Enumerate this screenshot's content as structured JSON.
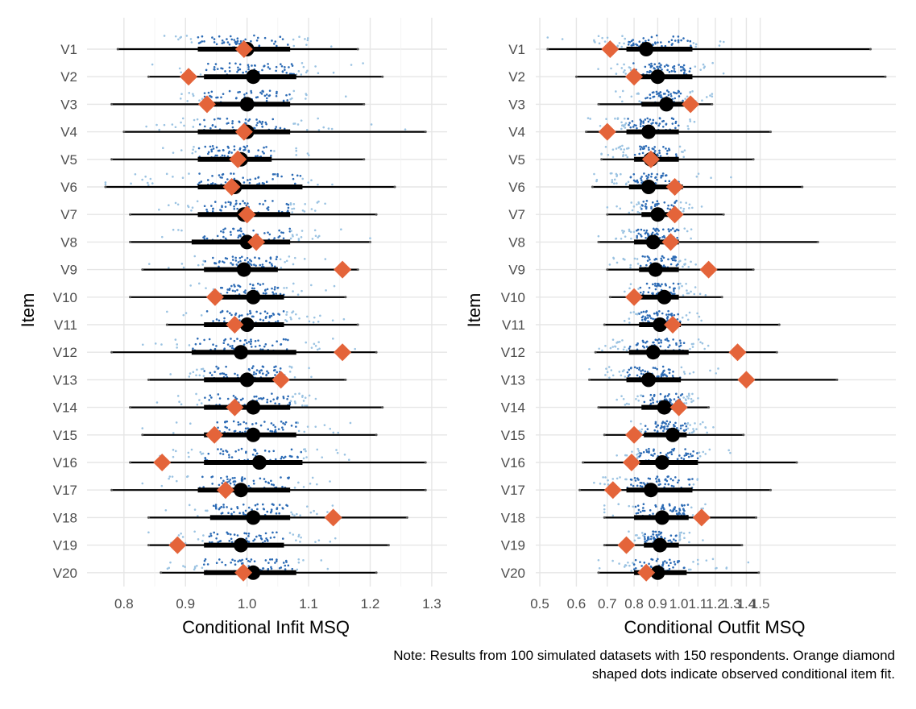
{
  "chart_data": [
    {
      "type": "interval-dotplot",
      "xlabel": "Conditional Infit MSQ",
      "ylabel": "Item",
      "xlim": [
        0.74,
        1.325
      ],
      "xticks": [
        0.8,
        0.9,
        1.0,
        1.1,
        1.2,
        1.3
      ],
      "xtick_labels": [
        "0.8",
        "0.9",
        "1.0",
        "1.1",
        "1.2",
        "1.3"
      ],
      "categories": [
        "V1",
        "V2",
        "V3",
        "V4",
        "V5",
        "V6",
        "V7",
        "V8",
        "V9",
        "V10",
        "V11",
        "V12",
        "V13",
        "V14",
        "V15",
        "V16",
        "V17",
        "V18",
        "V19",
        "V20"
      ],
      "median": [
        1.0,
        1.01,
        1.0,
        1.0,
        0.99,
        0.98,
        0.995,
        1.0,
        0.995,
        1.01,
        1.0,
        0.99,
        1.0,
        1.01,
        1.01,
        1.02,
        0.99,
        1.01,
        0.99,
        1.01
      ],
      "interval_66": [
        [
          0.92,
          1.07
        ],
        [
          0.93,
          1.08
        ],
        [
          0.93,
          1.07
        ],
        [
          0.92,
          1.07
        ],
        [
          0.92,
          1.04
        ],
        [
          0.92,
          1.09
        ],
        [
          0.92,
          1.07
        ],
        [
          0.91,
          1.07
        ],
        [
          0.93,
          1.05
        ],
        [
          0.95,
          1.06
        ],
        [
          0.93,
          1.06
        ],
        [
          0.91,
          1.08
        ],
        [
          0.93,
          1.06
        ],
        [
          0.93,
          1.07
        ],
        [
          0.93,
          1.08
        ],
        [
          0.93,
          1.09
        ],
        [
          0.92,
          1.07
        ],
        [
          0.94,
          1.07
        ],
        [
          0.93,
          1.06
        ],
        [
          0.93,
          1.08
        ]
      ],
      "interval_95": [
        [
          0.79,
          1.18
        ],
        [
          0.84,
          1.22
        ],
        [
          0.78,
          1.19
        ],
        [
          0.8,
          1.29
        ],
        [
          0.78,
          1.19
        ],
        [
          0.77,
          1.24
        ],
        [
          0.81,
          1.21
        ],
        [
          0.81,
          1.2
        ],
        [
          0.83,
          1.18
        ],
        [
          0.81,
          1.16
        ],
        [
          0.87,
          1.18
        ],
        [
          0.78,
          1.21
        ],
        [
          0.84,
          1.16
        ],
        [
          0.81,
          1.22
        ],
        [
          0.83,
          1.21
        ],
        [
          0.81,
          1.29
        ],
        [
          0.78,
          1.29
        ],
        [
          0.84,
          1.26
        ],
        [
          0.84,
          1.23
        ],
        [
          0.86,
          1.21
        ]
      ],
      "observed": [
        0.995,
        0.905,
        0.935,
        0.995,
        0.985,
        0.975,
        1.0,
        1.015,
        1.155,
        0.948,
        0.98,
        1.155,
        1.055,
        0.98,
        0.947,
        0.862,
        0.965,
        1.14,
        0.887,
        0.994
      ]
    },
    {
      "type": "interval-dotplot",
      "xlabel": "Conditional Outfit MSQ",
      "ylabel": "Item",
      "scale": "log",
      "xlim": [
        0.49,
        2.95
      ],
      "xticks": [
        0.5,
        0.6,
        0.7,
        0.8,
        0.9,
        1.0,
        1.1,
        1.2,
        1.3,
        1.4,
        1.5
      ],
      "xtick_labels": [
        "0.5",
        "0.6",
        "0.7",
        "0.8",
        "0.9",
        "1.0",
        "1.1",
        "1.2",
        "1.3",
        "1.4",
        "1.5"
      ],
      "categories": [
        "V1",
        "V2",
        "V3",
        "V4",
        "V5",
        "V6",
        "V7",
        "V8",
        "V9",
        "V10",
        "V11",
        "V12",
        "V13",
        "V14",
        "V15",
        "V16",
        "V17",
        "V18",
        "V19",
        "V20"
      ],
      "median": [
        0.85,
        0.9,
        0.94,
        0.86,
        0.87,
        0.86,
        0.9,
        0.88,
        0.89,
        0.93,
        0.91,
        0.88,
        0.86,
        0.93,
        0.97,
        0.92,
        0.87,
        0.92,
        0.91,
        0.9
      ],
      "interval_66": [
        [
          0.77,
          1.07
        ],
        [
          0.79,
          1.07
        ],
        [
          0.83,
          1.03
        ],
        [
          0.77,
          1.0
        ],
        [
          0.8,
          1.0
        ],
        [
          0.78,
          1.02
        ],
        [
          0.83,
          1.0
        ],
        [
          0.8,
          1.0
        ],
        [
          0.82,
          1.0
        ],
        [
          0.82,
          1.0
        ],
        [
          0.82,
          1.01
        ],
        [
          0.78,
          1.05
        ],
        [
          0.77,
          1.01
        ],
        [
          0.83,
          1.02
        ],
        [
          0.84,
          1.04
        ],
        [
          0.82,
          1.1
        ],
        [
          0.77,
          1.07
        ],
        [
          0.8,
          1.05
        ],
        [
          0.84,
          1.0
        ],
        [
          0.8,
          1.04
        ]
      ],
      "interval_95": [
        [
          0.52,
          2.6
        ],
        [
          0.6,
          2.8
        ],
        [
          0.67,
          1.18
        ],
        [
          0.63,
          1.58
        ],
        [
          0.68,
          1.45
        ],
        [
          0.65,
          1.85
        ],
        [
          0.7,
          1.25
        ],
        [
          0.67,
          2.0
        ],
        [
          0.7,
          1.45
        ],
        [
          0.71,
          1.24
        ],
        [
          0.69,
          1.65
        ],
        [
          0.66,
          1.63
        ],
        [
          0.64,
          2.2
        ],
        [
          0.67,
          1.16
        ],
        [
          0.69,
          1.38
        ],
        [
          0.62,
          1.8
        ],
        [
          0.61,
          1.58
        ],
        [
          0.69,
          1.47
        ],
        [
          0.69,
          1.37
        ],
        [
          0.67,
          1.49
        ]
      ],
      "observed": [
        0.71,
        0.8,
        1.06,
        0.7,
        0.87,
        0.98,
        0.98,
        0.96,
        1.16,
        0.8,
        0.97,
        1.34,
        1.4,
        1.0,
        0.8,
        0.79,
        0.72,
        1.12,
        0.77,
        0.85
      ]
    }
  ],
  "note": {
    "line1": "Note: Results from 100 simulated datasets with 150 respondents. Orange diamond",
    "line2": "shaped dots indicate observed conditional item fit."
  },
  "colors": {
    "observed": "#E4643A",
    "median": "#000000",
    "interval": "#000000",
    "dots_dark": "#2C6BB5",
    "dots_light": "#9BC3E2",
    "grid": "#E6E6E6",
    "tick_text": "#4D4D4D"
  }
}
